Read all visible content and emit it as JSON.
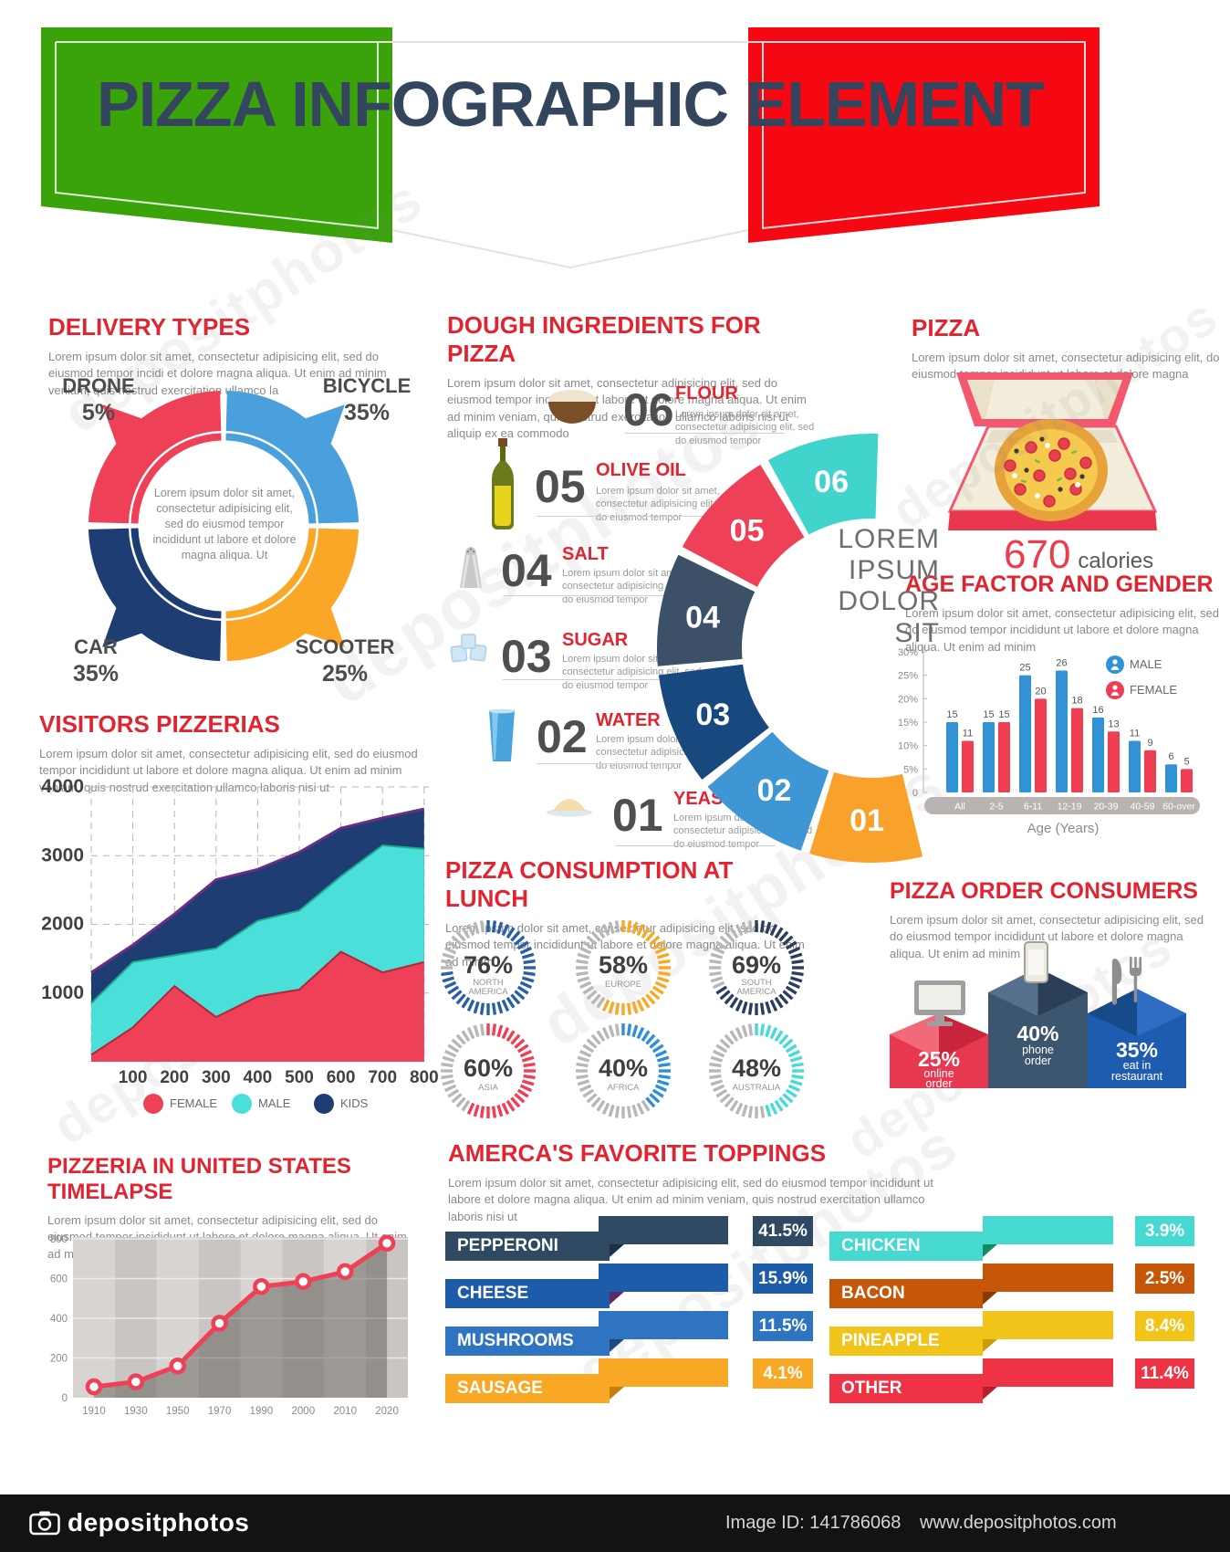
{
  "banner": {
    "title": "PIZZA INFOGRAPHIC ELEMENT"
  },
  "palette": {
    "flag_green": "#3aa30a",
    "flag_red": "#f60813",
    "title_navy": "#33465e",
    "heading_red": "#e02531",
    "body_gray": "#8a8a8a"
  },
  "sections": {
    "delivery": {
      "heading": "DELIVERY TYPES",
      "body": "Lorem ipsum dolor sit amet, consectetur adipisicing elit, sed do eiusmod tempor incidi et dolore magna aliqua. Ut enim ad minim veniam, quis nostrud exercitation ullamco la",
      "center_text": "Lorem ipsum dolor sit amet, consectetur adipisicing elit, sed do eiusmod tempor incididunt ut labore et dolore magna aliqua. Ut"
    },
    "dough": {
      "heading": "DOUGH INGREDIENTS FOR PIZZA",
      "body": "Lorem ipsum dolor sit amet, consectetur adipisicing elit, sed do eiusmod tempor incididunt ut labore et dolore magna aliqua. Ut enim ad minim veniam, quis nostrud exercitation ullamco laboris nisi ut aliquip ex ea commodo"
    },
    "pizza": {
      "heading": "PIZZA",
      "body": "Lorem ipsum dolor sit amet, consectetur adipisicing elit, do eiusmod tempor incididunt ut labore et dolore magna",
      "calories_value": "670",
      "calories_label": "calories"
    },
    "age": {
      "heading": "AGE FACTOR AND GENDER",
      "body": "Lorem ipsum dolor sit amet, consectetur adipisicing elit, sed do eiusmod tempor incididunt ut labore et dolore magna aliqua. Ut enim ad minim"
    },
    "visitors": {
      "heading": "VISITORS PIZZERIAS",
      "body": "Lorem ipsum dolor sit amet, consectetur adipisicing elit, sed do eiusmod tempor incididunt ut labore et dolore magna aliqua. Ut enim ad minim veniam, quis nostrud exercitation ullamco laboris nisi ut"
    },
    "consumption": {
      "heading": "PIZZA CONSUMPTION AT LUNCH",
      "body": "Lorem ipsum dolor sit amet, consectetur adipisicing elit, sed do eiusmod tempor incididunt ut labore et dolore magna aliqua. Ut enim ad minim"
    },
    "consumers": {
      "heading": "PIZZA ORDER CONSUMERS",
      "body": "Lorem ipsum dolor sit amet, consectetur adipisicing elit, sed do eiusmod tempor incididunt ut labore et dolore magna aliqua. Ut enim ad minim"
    },
    "timelapse": {
      "heading": "PIZZERIA IN UNITED STATES TIMELAPSE",
      "body": "Lorem ipsum dolor sit amet, consectetur adipisicing elit, sed do eiusmod tempor incididunt ut labore et dolore magna aliqua. Ut enim ad minim"
    },
    "toppings": {
      "heading": "AMERCA'S FAVORITE TOPPINGS",
      "body": "Lorem ipsum dolor sit amet, consectetur adipisicing elit, sed do eiusmod tempor incididunt ut labore et dolore magna aliqua. Ut enim ad minim veniam, quis nostrud exercitation ullamco laboris nisi ut"
    }
  },
  "footer": {
    "brand": "depositphotos",
    "image_id": "Image ID: 141786068",
    "site": "www.depositphotos.com"
  },
  "watermark": "depositphotos",
  "chart_data": [
    {
      "id": "delivery_types",
      "type": "pie",
      "title": "DELIVERY TYPES",
      "labels": [
        "DRONE",
        "BICYCLE",
        "SCOOTER",
        "CAR"
      ],
      "values": [
        5,
        35,
        25,
        35
      ],
      "slices": [
        {
          "name": "DRONE",
          "pct": "5%",
          "color": "#ee4056",
          "position": "top-left"
        },
        {
          "name": "BICYCLE",
          "pct": "35%",
          "color": "#49a0dc",
          "position": "top-right"
        },
        {
          "name": "SCOOTER",
          "pct": "25%",
          "color": "#faa728",
          "position": "bottom-right"
        },
        {
          "name": "CAR",
          "pct": "35%",
          "color": "#1e3d72",
          "position": "bottom-left"
        }
      ]
    },
    {
      "id": "dough_ingredients",
      "type": "pie",
      "title": "DOUGH INGREDIENTS FOR PIZZA",
      "center_text": "LOREM IPSUM DOLOR SIT",
      "items": [
        {
          "num": "06",
          "name": "FLOUR",
          "desc": "Lorem ipsum dolor sit amet, consectetur adipisicing elit, sed do eiusmod tempor",
          "icon": "flour-bowl-icon",
          "color": "#41d4cd"
        },
        {
          "num": "05",
          "name": "OLIVE OIL",
          "desc": "Lorem ipsum dolor sit amet, consectetur adipisicing elit, sed do eiusmod tempor",
          "icon": "olive-oil-bottle-icon",
          "color": "#ee4056"
        },
        {
          "num": "04",
          "name": "SALT",
          "desc": "Lorem ipsum dolor sit amet, consectetur adipisicing elit, sed do eiusmod tempor",
          "icon": "salt-shaker-icon",
          "color": "#3c5168"
        },
        {
          "num": "03",
          "name": "SUGAR",
          "desc": "Lorem ipsum dolor sit amet, consectetur adipisicing elit, sed do eiusmod tempor",
          "icon": "sugar-cubes-icon",
          "color": "#17497e"
        },
        {
          "num": "02",
          "name": "WATER",
          "desc": "Lorem ipsum dolor sit amet, consectetur adipisicing elit, sed do eiusmod tempor",
          "icon": "water-glass-icon",
          "color": "#3e97d4"
        },
        {
          "num": "01",
          "name": "YEAST",
          "desc": "Lorem ipsum dolor sit amet, consectetur adipisicing elit, sed do eiusmod tempor",
          "icon": "yeast-pile-icon",
          "color": "#f9a22b"
        }
      ]
    },
    {
      "id": "age_factor_gender",
      "type": "bar",
      "title": "AGE FACTOR AND GENDER",
      "categories": [
        "All",
        "2-5",
        "6-11",
        "12-19",
        "20-39",
        "40-59",
        "60-over"
      ],
      "series": [
        {
          "name": "MALE",
          "color": "#3193d6",
          "values": [
            15,
            15,
            25,
            26,
            16,
            11,
            6
          ]
        },
        {
          "name": "FEMALE",
          "color": "#ee3f55",
          "values": [
            11,
            15,
            20,
            18,
            13,
            9,
            5
          ]
        }
      ],
      "yticks": [
        "0",
        "5%",
        "10%",
        "15%",
        "20%",
        "25%",
        "30%"
      ],
      "ylim": [
        0,
        30
      ],
      "xlabel": "Age (Years)"
    },
    {
      "id": "visitors_pizzerias",
      "type": "area",
      "title": "VISITORS PIZZERIAS",
      "x": [
        0,
        100,
        200,
        300,
        400,
        500,
        600,
        700,
        800
      ],
      "xticks": [
        "100",
        "200",
        "300",
        "400",
        "500",
        "600",
        "700",
        "800"
      ],
      "yticks": [
        "1000",
        "2000",
        "3000",
        "4000"
      ],
      "ylim": [
        0,
        4000
      ],
      "series": [
        {
          "name": "FEMALE",
          "color": "#ee4056",
          "edge": "#b32538",
          "stack_top": [
            100,
            500,
            1100,
            650,
            950,
            1050,
            1600,
            1300,
            1450
          ]
        },
        {
          "name": "MALE",
          "color": "#4adfd8",
          "edge": "#21ab8e",
          "stack_top": [
            850,
            1450,
            1550,
            1650,
            2050,
            2200,
            2700,
            3150,
            3100
          ]
        },
        {
          "name": "KIDS",
          "color": "#1e3d72",
          "edge": "#6b2e85",
          "stack_top": [
            1300,
            1700,
            2150,
            2650,
            2800,
            3050,
            3400,
            3550,
            3680
          ]
        }
      ]
    },
    {
      "id": "pizza_consumption_at_lunch",
      "type": "gauge",
      "title": "PIZZA CONSUMPTION AT LUNCH",
      "items": [
        {
          "pct": 76,
          "label": "NORTH AMERICA",
          "color": "#2a5fa8"
        },
        {
          "pct": 58,
          "label": "EUROPE",
          "color": "#f9a825"
        },
        {
          "pct": 69,
          "label": "SOUTH AMERICA",
          "color": "#2c3e5e"
        },
        {
          "pct": 60,
          "label": "ASIA",
          "color": "#ee3f55"
        },
        {
          "pct": 40,
          "label": "AFRICA",
          "color": "#2e8fd8"
        },
        {
          "pct": 48,
          "label": "AUSTRALIA",
          "color": "#46dcd5"
        }
      ]
    },
    {
      "id": "pizza_order_consumers",
      "type": "bar",
      "title": "PIZZA ORDER CONSUMERS",
      "items": [
        {
          "pct": "25%",
          "label": [
            "online",
            "order"
          ],
          "icon": "monitor-icon",
          "front": "#e63950",
          "left": "#f2697a",
          "right": "#c8253c"
        },
        {
          "pct": "40%",
          "label": [
            "phone",
            "order"
          ],
          "icon": "smartphone-icon",
          "front": "#3d5670",
          "left": "#54708c",
          "right": "#2b3f58"
        },
        {
          "pct": "35%",
          "label": [
            "eat in",
            "restaurant"
          ],
          "icon": "cutlery-icon",
          "front": "#1d5cae",
          "left": "#174a89",
          "right": "#2f6cc4"
        }
      ]
    },
    {
      "id": "pizzeria_us_timelapse",
      "type": "line",
      "title": "PIZZERIA IN UNITED STATES TIMELAPSE",
      "x": [
        "1910",
        "1930",
        "1950",
        "1970",
        "1990",
        "2000",
        "2010",
        "2020"
      ],
      "values": [
        55,
        80,
        160,
        375,
        560,
        585,
        635,
        778
      ],
      "yticks": [
        0,
        200,
        400,
        600,
        800
      ],
      "ylim": [
        0,
        800
      ],
      "line_color": "#ef4056"
    },
    {
      "id": "favorite_toppings",
      "type": "bar",
      "title": "AMERCA'S FAVORITE TOPPINGS",
      "items": [
        {
          "name": "PEPPERONI",
          "value": "41.5%",
          "color": "#2e4961",
          "fold": "#1c3244"
        },
        {
          "name": "CHEESE",
          "value": "15.9%",
          "color": "#1d5ca8",
          "fold": "#5c2a6e"
        },
        {
          "name": "MUSHROOMS",
          "value": "11.5%",
          "color": "#2f74c0",
          "fold": "#1a4a80"
        },
        {
          "name": "SAUSAGE",
          "value": "4.1%",
          "color": "#f9a825",
          "fold": "#c77d0a"
        },
        {
          "name": "CHICKEN",
          "value": "3.9%",
          "color": "#45d9d2",
          "fold": "#168a62"
        },
        {
          "name": "BACON",
          "value": "2.5%",
          "color": "#c75708",
          "fold": "#8a3a05"
        },
        {
          "name": "PINEAPPLE",
          "value": "8.4%",
          "color": "#f0c419",
          "fold": "#c79d0a"
        },
        {
          "name": "OTHER",
          "value": "11.4%",
          "color": "#ee3345",
          "fold": "#b51f30"
        }
      ]
    }
  ]
}
